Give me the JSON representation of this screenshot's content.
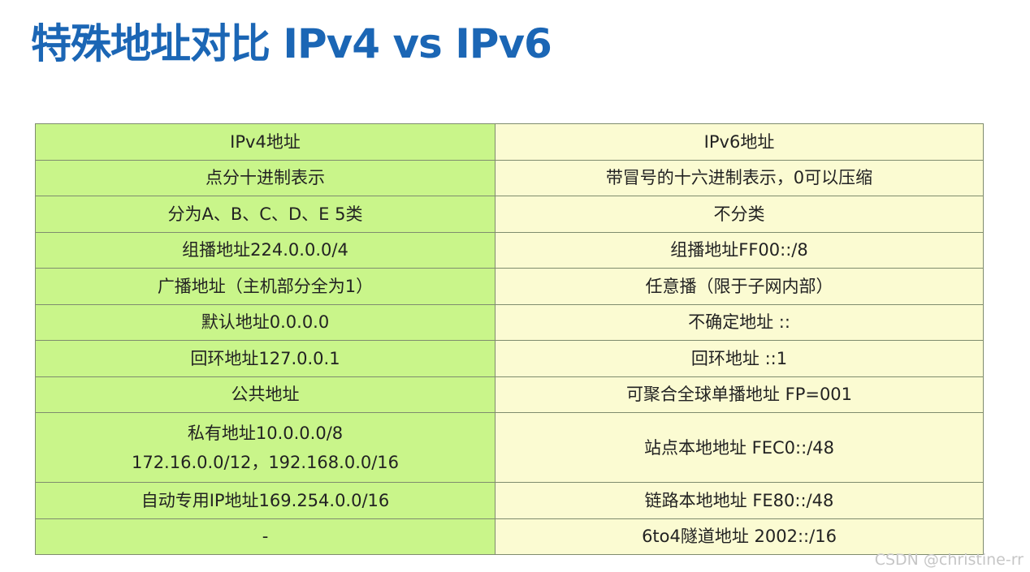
{
  "title": "特殊地址对比 IPv4 vs IPv6",
  "table": {
    "rows": [
      {
        "ipv4": "IPv4地址",
        "ipv6": "IPv6地址"
      },
      {
        "ipv4": "点分十进制表示",
        "ipv6": "带冒号的十六进制表示，0可以压缩"
      },
      {
        "ipv4": "分为A、B、C、D、E 5类",
        "ipv6": "不分类"
      },
      {
        "ipv4": "组播地址224.0.0.0/4",
        "ipv6": "组播地址FF00::/8"
      },
      {
        "ipv4": "广播地址（主机部分全为1）",
        "ipv6": "任意播（限于子网内部）"
      },
      {
        "ipv4": "默认地址0.0.0.0",
        "ipv6": "不确定地址 ::"
      },
      {
        "ipv4": "回环地址127.0.0.1",
        "ipv6": "回环地址 ::1"
      },
      {
        "ipv4": "公共地址",
        "ipv6": "可聚合全球单播地址 FP=001"
      },
      {
        "ipv4_line1": "私有地址10.0.0.0/8",
        "ipv4_line2": "172.16.0.0/12，192.168.0.0/16",
        "ipv6": "站点本地地址 FEC0::/48"
      },
      {
        "ipv4": "自动专用IP地址169.254.0.0/16",
        "ipv6": "链路本地地址 FE80::/48"
      },
      {
        "ipv4": "-",
        "ipv6": "6to4隧道地址 2002::/16"
      }
    ]
  },
  "watermark": "CSDN @christine-rr",
  "colors": {
    "title": "#1b66b5",
    "ipv4_column": "#c9f58a",
    "ipv6_column": "#fbfbd2"
  }
}
